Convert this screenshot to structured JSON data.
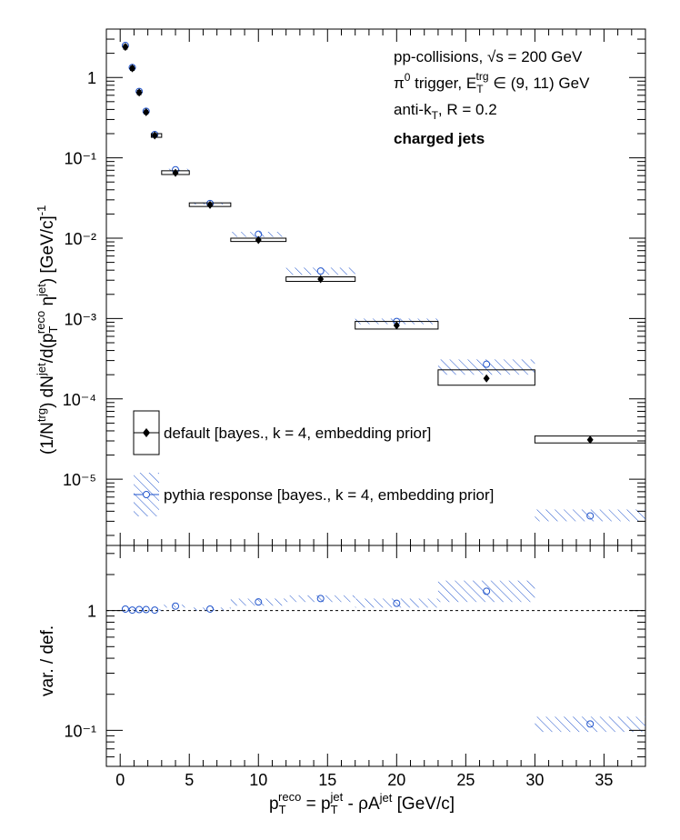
{
  "annotations": {
    "collisions": "pp-collisions, √s = 200 GeV",
    "trigger": "π⁰ trigger, E_T^trg ∈ (9, 11) GeV",
    "algorithm": "anti-k_T, R = 0.2",
    "jet_type": "charged jets"
  },
  "chart_data": [
    {
      "type": "scatter",
      "panel": "spectrum",
      "xlim": [
        -1,
        38
      ],
      "ylim": [
        1.5e-06,
        4
      ],
      "yscale": "log",
      "ylabel": "(1/N^trg) dN^jet/d(p_T^reco η^jet) [GeV/c]^-1",
      "ytick_labels": [
        "1",
        "10⁻¹",
        "10⁻²",
        "10⁻³",
        "10⁻⁴",
        "10⁻⁵"
      ],
      "legend": "bottom-left",
      "series": [
        {
          "name": "default [bayes., k = 4, embedding prior]",
          "color": "#000000",
          "marker": "filled-diamond",
          "x": [
            0.375,
            0.875,
            1.375,
            1.875,
            2.5,
            4,
            6.5,
            10,
            14.5,
            20,
            26.5,
            34
          ],
          "xlow": [
            0.25,
            0.75,
            1.25,
            1.75,
            2.25,
            3,
            5,
            8,
            12,
            17,
            23,
            30
          ],
          "xhigh": [
            0.5,
            1.0,
            1.5,
            2.0,
            3.0,
            5,
            8,
            12,
            17,
            23,
            30,
            38
          ],
          "y": [
            2.4,
            1.3,
            0.65,
            0.37,
            0.19,
            0.065,
            0.026,
            0.0095,
            0.0031,
            0.00082,
            0.00018,
            3.1e-05
          ],
          "sys_low": [
            2.25,
            1.22,
            0.61,
            0.35,
            0.18,
            0.062,
            0.0248,
            0.0091,
            0.0029,
            0.00074,
            0.000148,
            2.83e-05
          ],
          "sys_high": [
            2.55,
            1.38,
            0.69,
            0.39,
            0.2,
            0.069,
            0.0275,
            0.01,
            0.0033,
            0.00092,
            0.00023,
            3.45e-05
          ]
        },
        {
          "name": "pythia response [bayes., k = 4, embedding prior]",
          "color": "#2255cc",
          "marker": "open-circle",
          "x": [
            0.375,
            0.875,
            1.375,
            1.875,
            2.5,
            4,
            6.5,
            10,
            14.5,
            20,
            26.5,
            34
          ],
          "xlow": [
            0.25,
            0.75,
            1.25,
            1.75,
            2.25,
            3,
            5,
            8,
            12,
            17,
            23,
            30
          ],
          "xhigh": [
            0.5,
            1.0,
            1.5,
            2.0,
            3.0,
            5,
            8,
            12,
            17,
            23,
            30,
            38
          ],
          "y": [
            2.5,
            1.33,
            0.67,
            0.38,
            0.195,
            0.071,
            0.027,
            0.0112,
            0.0039,
            0.00092,
            0.00027,
            3.5e-06
          ],
          "sys_low": [
            2.45,
            1.3,
            0.65,
            0.37,
            0.19,
            0.069,
            0.0262,
            0.0104,
            0.0035,
            0.00085,
            0.0002,
            3e-06
          ],
          "sys_high": [
            2.55,
            1.36,
            0.69,
            0.39,
            0.2,
            0.073,
            0.0278,
            0.012,
            0.0043,
            0.001,
            0.00031,
            4.2e-06
          ]
        }
      ]
    },
    {
      "type": "scatter",
      "panel": "ratio",
      "xlim": [
        -1,
        38
      ],
      "ylim": [
        0.05,
        3.5
      ],
      "yscale": "log",
      "xlabel": "p_T^reco = p_T^jet - ρA^jet [GeV/c]",
      "ylabel": "var. / def.",
      "xtick_labels": [
        "0",
        "5",
        "10",
        "15",
        "20",
        "25",
        "30",
        "35"
      ],
      "ytick_labels": [
        "1",
        "10⁻¹"
      ],
      "reference_line": 1,
      "series": [
        {
          "name": "pythia response [bayes., k = 4, embedding prior]",
          "color": "#2255cc",
          "marker": "open-circle",
          "x": [
            0.375,
            0.875,
            1.375,
            1.875,
            2.5,
            4,
            6.5,
            10,
            14.5,
            20,
            26.5,
            34
          ],
          "xlow": [
            0.25,
            0.75,
            1.25,
            1.75,
            2.25,
            3,
            5,
            8,
            12,
            17,
            23,
            30
          ],
          "xhigh": [
            0.5,
            1.0,
            1.5,
            2.0,
            3.0,
            5,
            8,
            12,
            17,
            23,
            30,
            38
          ],
          "y": [
            1.03,
            1.01,
            1.02,
            1.02,
            1.01,
            1.09,
            1.03,
            1.18,
            1.26,
            1.15,
            1.45,
            0.113
          ],
          "sys_low": [
            1.01,
            0.99,
            1.0,
            1.0,
            0.99,
            1.06,
            1.0,
            1.1,
            1.18,
            1.06,
            1.18,
            0.097
          ],
          "sys_high": [
            1.05,
            1.03,
            1.04,
            1.04,
            1.03,
            1.12,
            1.06,
            1.26,
            1.34,
            1.26,
            1.78,
            0.13
          ]
        }
      ]
    }
  ]
}
